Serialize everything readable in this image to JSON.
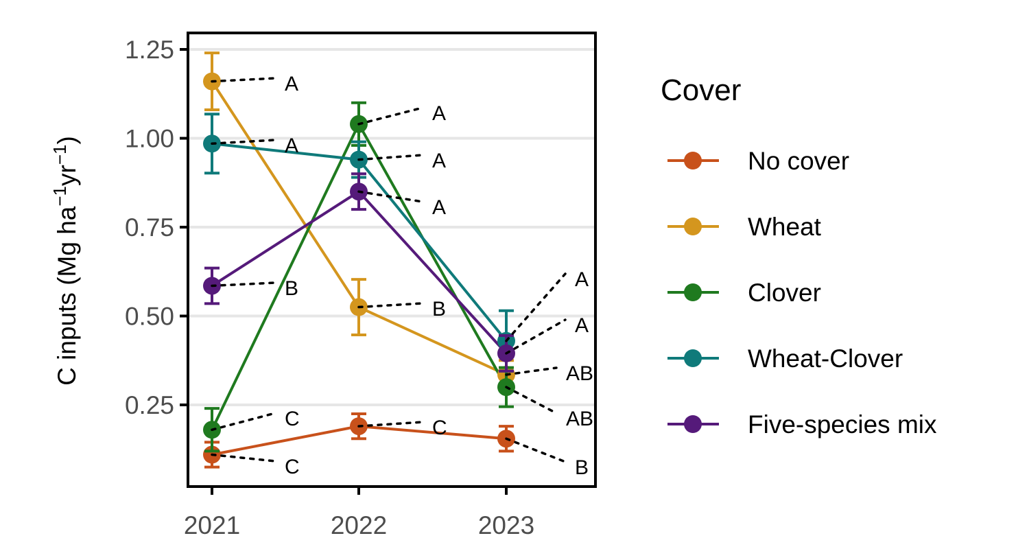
{
  "chart_data": {
    "type": "line",
    "categories": [
      "2021",
      "2022",
      "2023"
    ],
    "ylabel": {
      "main": "C inputs (Mg ha",
      "sup1": "−1",
      "mid": "yr",
      "sup2": "−1",
      "end": ")"
    },
    "xlabel": "",
    "ylim": [
      0.03,
      1.3
    ],
    "yticks": [
      0.25,
      0.5,
      0.75,
      1.0,
      1.25
    ],
    "ytick_labels": [
      "0.25",
      "0.50",
      "0.75",
      "1.00",
      "1.25"
    ],
    "grid": "horizontal-major",
    "legend": {
      "title": "Cover",
      "position": "right"
    },
    "series": [
      {
        "name": "No cover",
        "color": "#C8511B",
        "values": [
          0.11,
          0.19,
          0.155
        ],
        "errors": [
          0.035,
          0.035,
          0.035
        ],
        "letters": [
          "C",
          "C",
          "B"
        ]
      },
      {
        "name": "Wheat",
        "color": "#D4961E",
        "values": [
          1.16,
          0.525,
          0.335
        ],
        "errors": [
          0.08,
          0.078,
          0.04
        ],
        "letters": [
          "A",
          "B",
          "AB"
        ]
      },
      {
        "name": "Clover",
        "color": "#1F7A1F",
        "values": [
          0.18,
          1.04,
          0.3
        ],
        "errors": [
          0.06,
          0.06,
          0.055
        ],
        "letters": [
          "C",
          "A",
          "AB"
        ]
      },
      {
        "name": "Wheat-Clover",
        "color": "#0F7A7A",
        "values": [
          0.985,
          0.94,
          0.43
        ],
        "errors": [
          0.083,
          0.05,
          0.085
        ],
        "letters": [
          "A",
          "A",
          "A"
        ]
      },
      {
        "name": "Five-species mix",
        "color": "#551A7A",
        "values": [
          0.585,
          0.85,
          0.395
        ],
        "errors": [
          0.05,
          0.05,
          0.05
        ],
        "letters": [
          "B",
          "A",
          "A"
        ]
      }
    ]
  }
}
